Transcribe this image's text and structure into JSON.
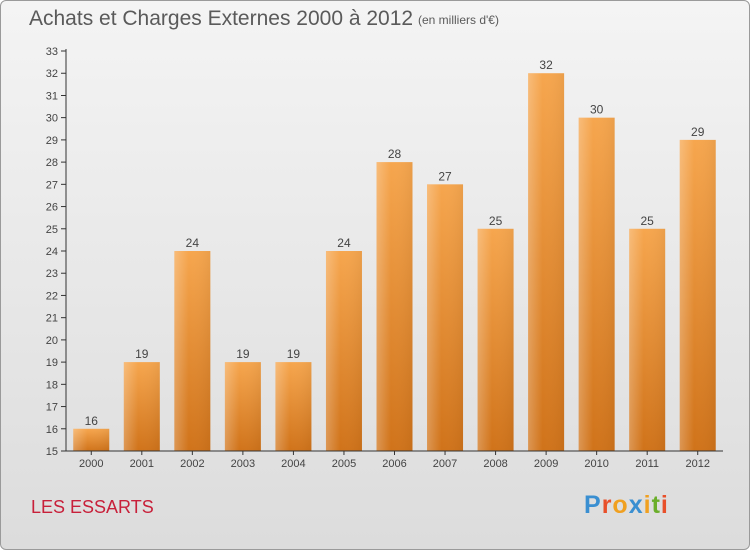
{
  "header": {
    "title": "Achats et Charges Externes 2000 à 2012",
    "subtitle": "(en milliers d'€)"
  },
  "footer": {
    "commune": "LES ESSARTS",
    "brand": "Proxiti"
  },
  "colors": {
    "bar_top": "#f6a64e",
    "bar_bottom": "#d0731a",
    "commune": "#c8203a"
  },
  "chart_data": {
    "type": "bar",
    "title": "Achats et Charges Externes 2000 à 2012",
    "subtitle": "(en milliers d'€)",
    "categories": [
      "2000",
      "2001",
      "2002",
      "2003",
      "2004",
      "2005",
      "2006",
      "2007",
      "2008",
      "2009",
      "2010",
      "2011",
      "2012"
    ],
    "values": [
      16,
      19,
      24,
      19,
      19,
      24,
      28,
      27,
      25,
      32,
      30,
      25,
      29
    ],
    "ylim": [
      15,
      33
    ],
    "yticks": [
      15,
      16,
      17,
      18,
      19,
      20,
      21,
      22,
      23,
      24,
      25,
      26,
      27,
      28,
      29,
      30,
      31,
      32,
      33
    ],
    "xlabel": "",
    "ylabel": "",
    "grid": false,
    "data_labels": true
  }
}
